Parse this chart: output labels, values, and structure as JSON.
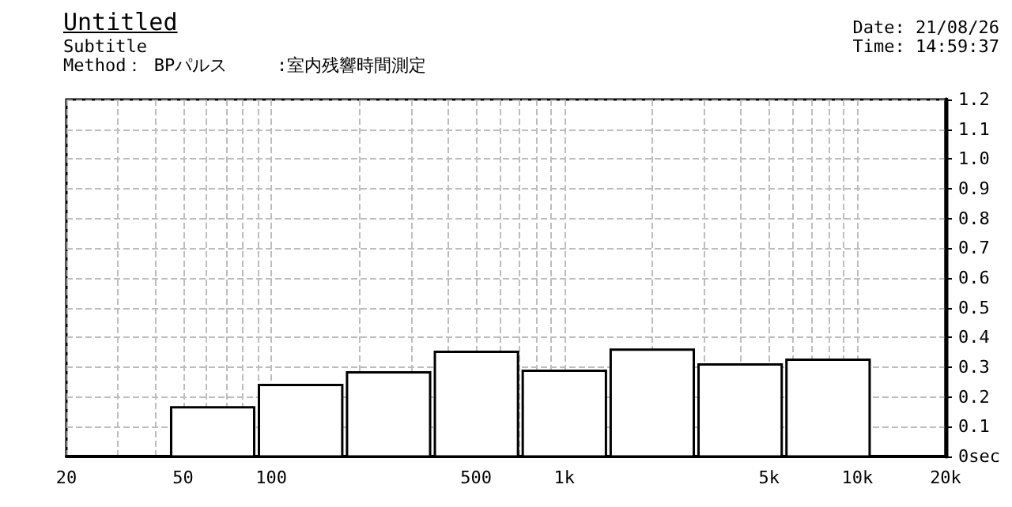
{
  "chart_data": {
    "type": "histogram",
    "title": "Untitled",
    "subtitle": "Subtitle",
    "annotations": [
      "Method： BPパルス",
      ":室内残響時間測定",
      "Date: 21/08/26",
      "Time: 14:59:37"
    ],
    "bins": [
      44.7,
      89.1,
      178,
      355,
      708,
      1413,
      2818,
      5623,
      11220
    ],
    "values": [
      0.165,
      0.24,
      0.283,
      0.352,
      0.288,
      0.359,
      0.309,
      0.325
    ],
    "color": "#ffffff",
    "log": "x",
    "xlim": [
      20,
      20000
    ],
    "xticks": [
      20,
      {
        "value": 30,
        "label": null
      },
      {
        "value": 40,
        "label": null
      },
      50,
      {
        "value": 60,
        "label": null
      },
      {
        "value": 70,
        "label": null
      },
      {
        "value": 80,
        "label": null
      },
      {
        "value": 90,
        "label": null
      },
      100,
      {
        "value": 200,
        "label": null
      },
      {
        "value": 300,
        "label": null
      },
      {
        "value": 400,
        "label": null
      },
      500,
      {
        "value": 600,
        "label": null
      },
      {
        "value": 700,
        "label": null
      },
      {
        "value": 800,
        "label": null
      },
      {
        "value": 900,
        "label": null
      },
      {
        "value": 1000,
        "label": "1k"
      },
      {
        "value": 2000,
        "label": null
      },
      {
        "value": 3000,
        "label": null
      },
      {
        "value": 4000,
        "label": null
      },
      {
        "value": 5000,
        "label": "5k"
      },
      {
        "value": 6000,
        "label": null
      },
      {
        "value": 7000,
        "label": null
      },
      {
        "value": 8000,
        "label": null
      },
      {
        "value": 9000,
        "label": null
      },
      {
        "value": 10000,
        "label": "10k"
      },
      {
        "value": 20000,
        "label": "20k"
      }
    ],
    "ylim": [
      0,
      1.2
    ],
    "yticks": [
      {
        "value": 0,
        "label": "0sec"
      },
      0.1,
      0.2,
      0.3,
      0.4,
      0.5,
      0.6,
      0.7,
      0.8,
      0.9,
      {
        "value": 1.0,
        "label": "1.0"
      },
      1.1,
      1.2
    ],
    "grid": true
  }
}
